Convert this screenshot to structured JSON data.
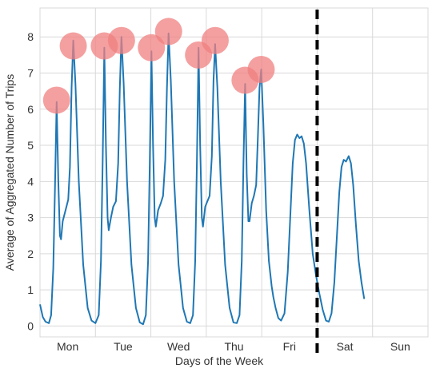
{
  "chart_data": {
    "type": "line",
    "xlabel": "Days of the Week",
    "ylabel": "Average of Aggregated Number of Trips",
    "categories": [
      "Mon",
      "Tue",
      "Wed",
      "Thu",
      "Fri",
      "Sat",
      "Sun"
    ],
    "xlim": [
      0,
      7
    ],
    "ylim": [
      -0.3,
      8.8
    ],
    "yticks": [
      0,
      1,
      2,
      3,
      4,
      5,
      6,
      7,
      8
    ],
    "grid": true,
    "weekend_divider_x": 5.0,
    "line_color": "#1f77b4",
    "divider_color": "#000000",
    "peak_marker_color": "#f08080",
    "series": [
      {
        "points": [
          [
            0.0,
            0.6
          ],
          [
            0.05,
            0.25
          ],
          [
            0.1,
            0.12
          ],
          [
            0.16,
            0.08
          ],
          [
            0.2,
            0.3
          ],
          [
            0.24,
            1.6
          ],
          [
            0.27,
            3.8
          ],
          [
            0.3,
            6.2
          ],
          [
            0.33,
            4.0
          ],
          [
            0.36,
            2.5
          ],
          [
            0.38,
            2.4
          ],
          [
            0.41,
            2.9
          ],
          [
            0.46,
            3.2
          ],
          [
            0.51,
            3.5
          ],
          [
            0.54,
            4.4
          ],
          [
            0.57,
            6.6
          ],
          [
            0.6,
            7.9
          ],
          [
            0.64,
            6.7
          ],
          [
            0.7,
            4.0
          ],
          [
            0.78,
            1.7
          ],
          [
            0.86,
            0.5
          ],
          [
            0.93,
            0.15
          ],
          [
            1.0,
            0.08
          ],
          [
            1.06,
            0.3
          ],
          [
            1.1,
            1.8
          ],
          [
            1.13,
            4.5
          ],
          [
            1.16,
            7.7
          ],
          [
            1.19,
            5.0
          ],
          [
            1.22,
            3.0
          ],
          [
            1.24,
            2.65
          ],
          [
            1.28,
            3.0
          ],
          [
            1.32,
            3.3
          ],
          [
            1.37,
            3.45
          ],
          [
            1.41,
            4.5
          ],
          [
            1.44,
            6.6
          ],
          [
            1.47,
            8.0
          ],
          [
            1.51,
            6.7
          ],
          [
            1.57,
            4.0
          ],
          [
            1.65,
            1.7
          ],
          [
            1.73,
            0.5
          ],
          [
            1.8,
            0.1
          ],
          [
            1.86,
            0.05
          ],
          [
            1.91,
            0.3
          ],
          [
            1.95,
            1.8
          ],
          [
            1.98,
            4.5
          ],
          [
            2.01,
            7.6
          ],
          [
            2.04,
            5.0
          ],
          [
            2.07,
            3.0
          ],
          [
            2.09,
            2.75
          ],
          [
            2.13,
            3.2
          ],
          [
            2.18,
            3.4
          ],
          [
            2.22,
            3.6
          ],
          [
            2.26,
            4.6
          ],
          [
            2.29,
            6.6
          ],
          [
            2.32,
            8.1
          ],
          [
            2.36,
            6.8
          ],
          [
            2.42,
            4.0
          ],
          [
            2.5,
            1.7
          ],
          [
            2.58,
            0.5
          ],
          [
            2.65,
            0.12
          ],
          [
            2.71,
            0.08
          ],
          [
            2.76,
            0.3
          ],
          [
            2.8,
            1.8
          ],
          [
            2.83,
            4.5
          ],
          [
            2.86,
            7.7
          ],
          [
            2.89,
            5.0
          ],
          [
            2.92,
            3.0
          ],
          [
            2.94,
            2.75
          ],
          [
            2.98,
            3.3
          ],
          [
            3.02,
            3.45
          ],
          [
            3.06,
            3.6
          ],
          [
            3.1,
            4.7
          ],
          [
            3.13,
            6.8
          ],
          [
            3.16,
            7.8
          ],
          [
            3.2,
            6.6
          ],
          [
            3.26,
            4.0
          ],
          [
            3.34,
            1.7
          ],
          [
            3.42,
            0.5
          ],
          [
            3.49,
            0.1
          ],
          [
            3.55,
            0.08
          ],
          [
            3.6,
            0.3
          ],
          [
            3.64,
            1.8
          ],
          [
            3.67,
            4.5
          ],
          [
            3.7,
            6.7
          ],
          [
            3.73,
            4.2
          ],
          [
            3.76,
            2.9
          ],
          [
            3.78,
            2.9
          ],
          [
            3.82,
            3.4
          ],
          [
            3.86,
            3.6
          ],
          [
            3.9,
            3.9
          ],
          [
            3.93,
            5.2
          ],
          [
            3.96,
            6.6
          ],
          [
            3.99,
            7.1
          ],
          [
            4.03,
            5.6
          ],
          [
            4.08,
            3.2
          ],
          [
            4.13,
            1.8
          ],
          [
            4.18,
            1.1
          ],
          [
            4.21,
            0.8
          ],
          [
            4.25,
            0.5
          ],
          [
            4.3,
            0.22
          ],
          [
            4.35,
            0.15
          ],
          [
            4.41,
            0.35
          ],
          [
            4.47,
            1.5
          ],
          [
            4.52,
            3.2
          ],
          [
            4.56,
            4.5
          ],
          [
            4.6,
            5.15
          ],
          [
            4.64,
            5.3
          ],
          [
            4.68,
            5.2
          ],
          [
            4.72,
            5.25
          ],
          [
            4.76,
            5.05
          ],
          [
            4.8,
            4.5
          ],
          [
            4.86,
            3.2
          ],
          [
            4.92,
            2.0
          ],
          [
            4.98,
            1.4
          ],
          [
            5.04,
            0.9
          ],
          [
            5.1,
            0.45
          ],
          [
            5.16,
            0.15
          ],
          [
            5.21,
            0.12
          ],
          [
            5.26,
            0.35
          ],
          [
            5.31,
            1.2
          ],
          [
            5.36,
            2.6
          ],
          [
            5.4,
            3.7
          ],
          [
            5.44,
            4.4
          ],
          [
            5.48,
            4.6
          ],
          [
            5.52,
            4.55
          ],
          [
            5.57,
            4.7
          ],
          [
            5.61,
            4.5
          ],
          [
            5.65,
            3.9
          ],
          [
            5.7,
            2.8
          ],
          [
            5.75,
            1.8
          ],
          [
            5.8,
            1.2
          ],
          [
            5.85,
            0.75
          ]
        ]
      }
    ],
    "peak_markers": [
      [
        0.3,
        6.25
      ],
      [
        0.6,
        7.75
      ],
      [
        1.16,
        7.75
      ],
      [
        1.47,
        7.9
      ],
      [
        2.01,
        7.7
      ],
      [
        2.32,
        8.15
      ],
      [
        2.86,
        7.5
      ],
      [
        3.16,
        7.9
      ],
      [
        3.7,
        6.8
      ],
      [
        3.99,
        7.1
      ]
    ]
  }
}
